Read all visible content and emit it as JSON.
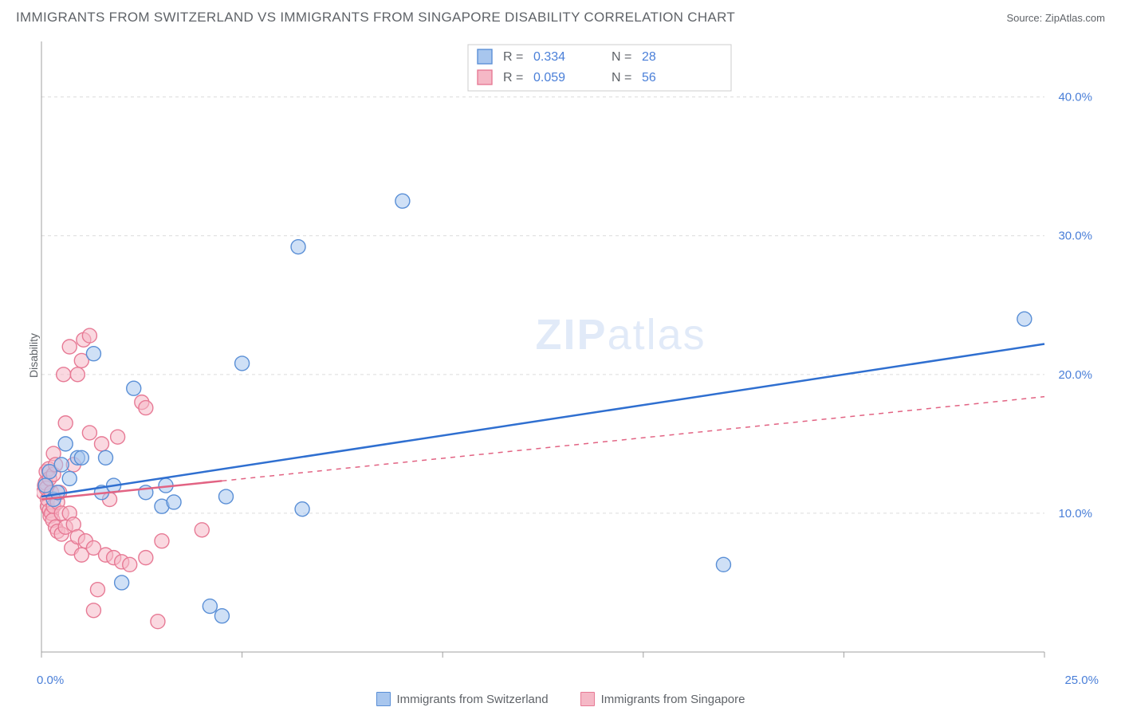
{
  "title": "IMMIGRANTS FROM SWITZERLAND VS IMMIGRANTS FROM SINGAPORE DISABILITY CORRELATION CHART",
  "source_prefix": "Source: ",
  "source_name": "ZipAtlas.com",
  "y_axis_label": "Disability",
  "watermark": {
    "bold": "ZIP",
    "light": "atlas"
  },
  "chart": {
    "type": "scatter",
    "xlim": [
      0,
      25
    ],
    "ylim": [
      0,
      44
    ],
    "y_ticks": [
      10,
      20,
      30,
      40
    ],
    "y_tick_labels": [
      "10.0%",
      "20.0%",
      "30.0%",
      "40.0%"
    ],
    "x_ticks": [
      0,
      5,
      10,
      15,
      20,
      25
    ],
    "x_min_label": "0.0%",
    "x_max_label": "25.0%",
    "grid_color": "#dcdcdc",
    "axis_color": "#a0a0a0",
    "background_color": "#ffffff",
    "marker_radius": 9,
    "marker_opacity": 0.55,
    "line_width": 2.5,
    "series": [
      {
        "name": "Immigrants from Switzerland",
        "color_fill": "#a8c6ee",
        "color_stroke": "#5a8fd6",
        "line_color": "#2f6fd0",
        "regression": {
          "x1": 0,
          "y1": 11.2,
          "x2": 25,
          "y2": 22.2,
          "solid_until_x": 25
        },
        "stats": {
          "r_label": "R =",
          "r": "0.334",
          "n_label": "N =",
          "n": "28"
        },
        "points": [
          {
            "x": 0.1,
            "y": 12.0
          },
          {
            "x": 0.2,
            "y": 13.0
          },
          {
            "x": 0.3,
            "y": 11.0
          },
          {
            "x": 0.4,
            "y": 11.5
          },
          {
            "x": 0.5,
            "y": 13.5
          },
          {
            "x": 0.6,
            "y": 15.0
          },
          {
            "x": 0.7,
            "y": 12.5
          },
          {
            "x": 0.9,
            "y": 14.0
          },
          {
            "x": 1.0,
            "y": 14.0
          },
          {
            "x": 1.3,
            "y": 21.5
          },
          {
            "x": 1.5,
            "y": 11.5
          },
          {
            "x": 1.6,
            "y": 14.0
          },
          {
            "x": 1.8,
            "y": 12.0
          },
          {
            "x": 2.0,
            "y": 5.0
          },
          {
            "x": 2.3,
            "y": 19.0
          },
          {
            "x": 2.6,
            "y": 11.5
          },
          {
            "x": 3.0,
            "y": 10.5
          },
          {
            "x": 3.1,
            "y": 12.0
          },
          {
            "x": 3.3,
            "y": 10.8
          },
          {
            "x": 4.2,
            "y": 3.3
          },
          {
            "x": 4.5,
            "y": 2.6
          },
          {
            "x": 4.6,
            "y": 11.2
          },
          {
            "x": 5.0,
            "y": 20.8
          },
          {
            "x": 6.4,
            "y": 29.2
          },
          {
            "x": 6.5,
            "y": 10.3
          },
          {
            "x": 9.0,
            "y": 32.5
          },
          {
            "x": 17.0,
            "y": 6.3
          },
          {
            "x": 24.5,
            "y": 24.0
          }
        ]
      },
      {
        "name": "Immigrants from Singapore",
        "color_fill": "#f5b8c6",
        "color_stroke": "#e77a95",
        "line_color": "#e26383",
        "regression": {
          "x1": 0,
          "y1": 11.0,
          "x2": 25,
          "y2": 18.4,
          "solid_until_x": 4.5
        },
        "stats": {
          "r_label": "R =",
          "r": "0.059",
          "n_label": "N =",
          "n": "56"
        },
        "points": [
          {
            "x": 0.05,
            "y": 11.5
          },
          {
            "x": 0.08,
            "y": 12.0
          },
          {
            "x": 0.1,
            "y": 12.2
          },
          {
            "x": 0.12,
            "y": 11.8
          },
          {
            "x": 0.12,
            "y": 13.0
          },
          {
            "x": 0.15,
            "y": 10.5
          },
          {
            "x": 0.15,
            "y": 11.0
          },
          {
            "x": 0.18,
            "y": 13.2
          },
          {
            "x": 0.2,
            "y": 10.2
          },
          {
            "x": 0.2,
            "y": 12.5
          },
          {
            "x": 0.22,
            "y": 9.8
          },
          {
            "x": 0.25,
            "y": 11.5
          },
          {
            "x": 0.25,
            "y": 10.0
          },
          {
            "x": 0.28,
            "y": 9.5
          },
          {
            "x": 0.3,
            "y": 14.3
          },
          {
            "x": 0.3,
            "y": 12.8
          },
          {
            "x": 0.3,
            "y": 10.5
          },
          {
            "x": 0.35,
            "y": 13.5
          },
          {
            "x": 0.35,
            "y": 9.0
          },
          {
            "x": 0.4,
            "y": 10.8
          },
          {
            "x": 0.4,
            "y": 8.7
          },
          {
            "x": 0.45,
            "y": 11.5
          },
          {
            "x": 0.5,
            "y": 10.0
          },
          {
            "x": 0.5,
            "y": 8.5
          },
          {
            "x": 0.55,
            "y": 20.0
          },
          {
            "x": 0.6,
            "y": 16.5
          },
          {
            "x": 0.6,
            "y": 9.0
          },
          {
            "x": 0.7,
            "y": 22.0
          },
          {
            "x": 0.7,
            "y": 10.0
          },
          {
            "x": 0.75,
            "y": 7.5
          },
          {
            "x": 0.8,
            "y": 13.5
          },
          {
            "x": 0.8,
            "y": 9.2
          },
          {
            "x": 0.9,
            "y": 20.0
          },
          {
            "x": 0.9,
            "y": 8.3
          },
          {
            "x": 1.0,
            "y": 21.0
          },
          {
            "x": 1.0,
            "y": 7.0
          },
          {
            "x": 1.05,
            "y": 22.5
          },
          {
            "x": 1.1,
            "y": 8.0
          },
          {
            "x": 1.2,
            "y": 22.8
          },
          {
            "x": 1.2,
            "y": 15.8
          },
          {
            "x": 1.3,
            "y": 7.5
          },
          {
            "x": 1.3,
            "y": 3.0
          },
          {
            "x": 1.4,
            "y": 4.5
          },
          {
            "x": 1.5,
            "y": 15.0
          },
          {
            "x": 1.6,
            "y": 7.0
          },
          {
            "x": 1.7,
            "y": 11.0
          },
          {
            "x": 1.8,
            "y": 6.8
          },
          {
            "x": 1.9,
            "y": 15.5
          },
          {
            "x": 2.0,
            "y": 6.5
          },
          {
            "x": 2.2,
            "y": 6.3
          },
          {
            "x": 2.5,
            "y": 18.0
          },
          {
            "x": 2.6,
            "y": 17.6
          },
          {
            "x": 2.6,
            "y": 6.8
          },
          {
            "x": 2.9,
            "y": 2.2
          },
          {
            "x": 3.0,
            "y": 8.0
          },
          {
            "x": 4.0,
            "y": 8.8
          }
        ]
      }
    ]
  },
  "bottom_legend": [
    {
      "label": "Immigrants from Switzerland",
      "fill": "#a8c6ee",
      "stroke": "#5a8fd6"
    },
    {
      "label": "Immigrants from Singapore",
      "fill": "#f5b8c6",
      "stroke": "#e77a95"
    }
  ]
}
